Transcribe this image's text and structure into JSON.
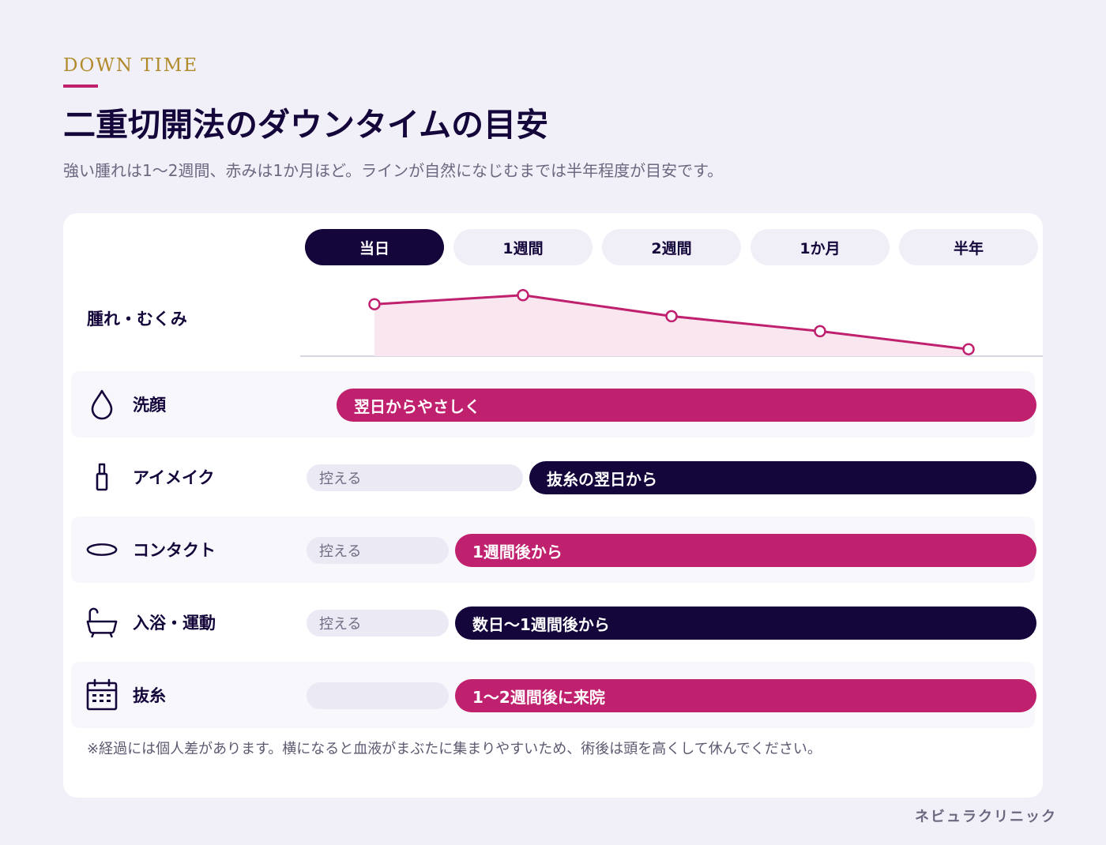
{
  "header": {
    "eyebrow": "DOWN TIME",
    "title": "二重切開法のダウンタイムの目安",
    "subtitle": "強い腫れは1〜2週間、赤みは1か月ほど。ラインが自然になじむまでは半年程度が目安です。"
  },
  "timeline": {
    "periods": [
      "当日",
      "1週間",
      "2週間",
      "1か月",
      "半年"
    ],
    "active_index": 0
  },
  "swelling": {
    "label": "腫れ・むくみ",
    "levels": [
      0.8,
      0.95,
      0.6,
      0.35,
      0.05
    ],
    "line_color": "#c0216f",
    "fill_color": "#f9e6ef"
  },
  "rows": [
    {
      "label": "洗顔",
      "icon": "water-drop-icon",
      "avoid_label": "",
      "bar_label": "翌日からやさしく",
      "bar_color": "#c0216f"
    },
    {
      "label": "アイメイク",
      "icon": "mascara-icon",
      "avoid_label": "控える",
      "bar_label": "抜糸の翌日から",
      "bar_color": "#14063a"
    },
    {
      "label": "コンタクト",
      "icon": "contact-lens-icon",
      "avoid_label": "控える",
      "bar_label": "1週間後から",
      "bar_color": "#c0216f"
    },
    {
      "label": "入浴・運動",
      "icon": "bathtub-icon",
      "avoid_label": "控える",
      "bar_label": "数日〜1週間後から",
      "bar_color": "#14063a"
    },
    {
      "label": "抜糸",
      "icon": "calendar-icon",
      "avoid_label": "",
      "bar_label": "1〜2週間後に来院",
      "bar_color": "#c0216f"
    }
  ],
  "note": "※経過には個人差があります。横になると血液がまぶたに集まりやすいため、術後は頭を高くして休んでください。",
  "footer": "ネビュラクリニック",
  "colors": {
    "accent": "#c0216f",
    "navy": "#14063a",
    "gold": "#b18a2c",
    "background": "#f1eff8"
  }
}
